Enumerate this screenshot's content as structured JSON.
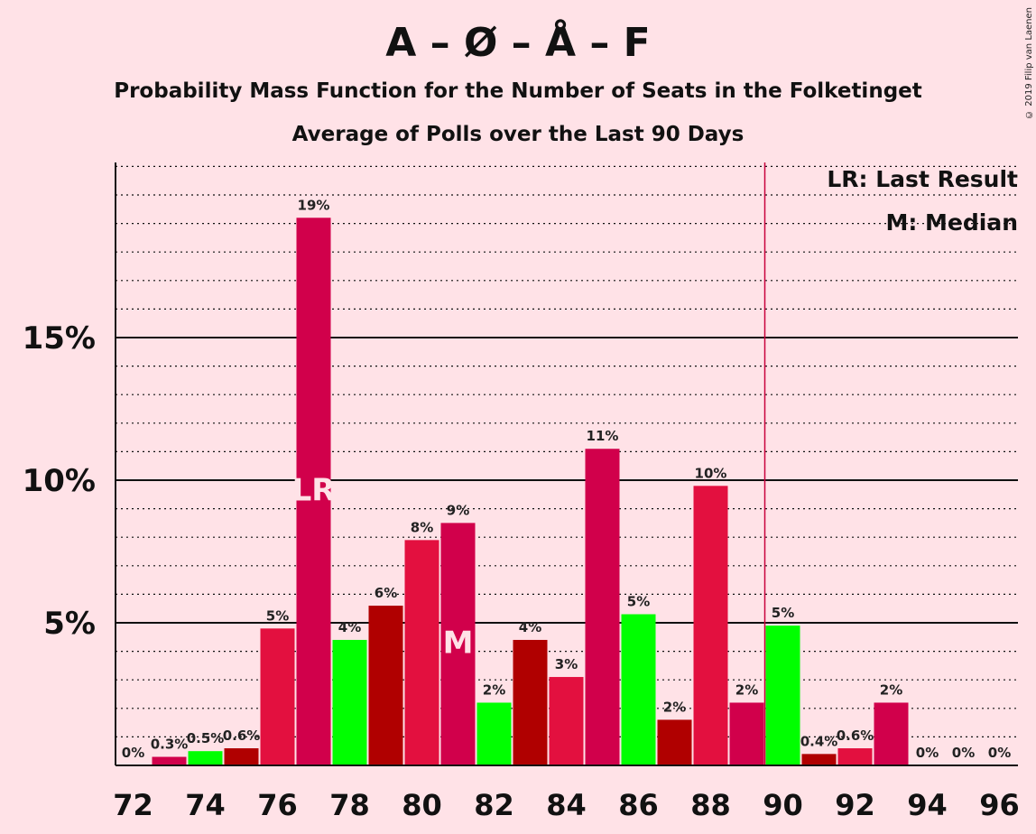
{
  "title": "A – Ø – Å – F",
  "subtitle1": "Probability Mass Function for the Number of Seats in the Folketinget",
  "subtitle2": "Average of Polls over the Last 90 Days",
  "copyright": "© 2019 Filip van Laenen",
  "legend": {
    "lr": "LR: Last Result",
    "m": "M: Median"
  },
  "chart_data": {
    "type": "bar",
    "x": [
      72,
      73,
      74,
      75,
      76,
      77,
      78,
      79,
      80,
      81,
      82,
      83,
      84,
      85,
      86,
      87,
      88,
      89,
      90,
      91,
      92,
      93,
      94,
      95,
      96
    ],
    "values": [
      0,
      0.3,
      0.5,
      0.6,
      4.8,
      19.2,
      4.4,
      5.6,
      7.9,
      8.5,
      2.2,
      4.4,
      3.1,
      11.1,
      5.3,
      1.6,
      9.8,
      2.2,
      4.9,
      0.4,
      0.6,
      2.2,
      0,
      0,
      0
    ],
    "data_labels": [
      "0%",
      "0.3%",
      "0.5%",
      "0.6%",
      "5%",
      "19%",
      "4%",
      "6%",
      "8%",
      "9%",
      "2%",
      "4%",
      "3%",
      "11%",
      "5%",
      "2%",
      "10%",
      "2%",
      "5%",
      "0.4%",
      "0.6%",
      "2%",
      "0%",
      "0%",
      "0%"
    ],
    "bar_colors": [
      "#d1004b",
      "#d1004b",
      "#00ff00",
      "#b00000",
      "#e3103f",
      "#d1004b",
      "#00ff00",
      "#b00000",
      "#e3103f",
      "#d1004b",
      "#00ff00",
      "#b00000",
      "#e3103f",
      "#d1004b",
      "#00ff00",
      "#b00000",
      "#e3103f",
      "#d1004b",
      "#00ff00",
      "#b00000",
      "#e3103f",
      "#d1004b",
      "#00ff00",
      "#b00000",
      "#e3103f"
    ],
    "x_ticks": [
      "72",
      "74",
      "76",
      "78",
      "80",
      "82",
      "84",
      "86",
      "88",
      "90",
      "92",
      "94",
      "96"
    ],
    "y_ticks": [
      "5%",
      "10%",
      "15%"
    ],
    "y_tick_values": [
      5,
      10,
      15
    ],
    "ylim": [
      0,
      21
    ],
    "minor_gridlines_step": 1,
    "last_result": {
      "x": 77,
      "label": "LR"
    },
    "median": {
      "x": 81,
      "label": "M"
    },
    "majority_line_x": 89.5,
    "majority_line_color": "#c8003c",
    "background": "#ffe2e7"
  }
}
